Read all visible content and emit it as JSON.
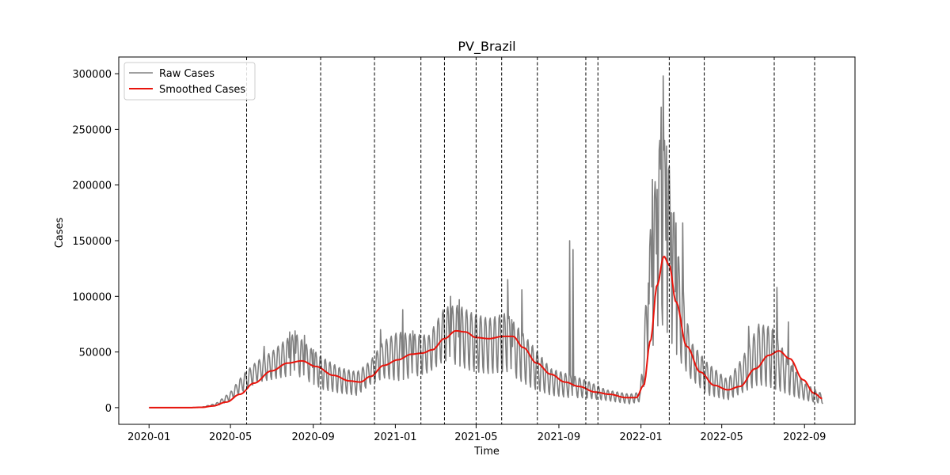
{
  "chart_data": {
    "type": "line",
    "title": "PV_Brazil",
    "xlabel": "Time",
    "ylabel": "Cases",
    "xlim": [
      "2019-11-17",
      "2022-11-15"
    ],
    "ylim": [
      -15000,
      315000
    ],
    "x_ticks": [
      "2020-01",
      "2020-05",
      "2020-09",
      "2021-01",
      "2021-05",
      "2021-09",
      "2022-01",
      "2022-05",
      "2022-09"
    ],
    "y_ticks": [
      0,
      50000,
      100000,
      150000,
      200000,
      250000,
      300000
    ],
    "grid": false,
    "legend_position": "top-left",
    "colors": {
      "raw": "#808080",
      "smoothed": "#e8140c",
      "vlines": "#000000"
    },
    "series": [
      {
        "name": "Raw Cases",
        "style": "weekly-oscillating",
        "points": [
          [
            "2020-01-01",
            0,
            0
          ],
          [
            "2020-03-01",
            0,
            0
          ],
          [
            "2020-03-20",
            200,
            500
          ],
          [
            "2020-04-10",
            1500,
            4000
          ],
          [
            "2020-05-01",
            6000,
            14000
          ],
          [
            "2020-05-20",
            14000,
            30000
          ],
          [
            "2020-06-10",
            22000,
            42000
          ],
          [
            "2020-07-01",
            24000,
            50000
          ],
          [
            "2020-07-20",
            26000,
            60000
          ],
          [
            "2020-08-05",
            28000,
            67000
          ],
          [
            "2020-08-25",
            22000,
            55000
          ],
          [
            "2020-09-15",
            15000,
            45000
          ],
          [
            "2020-10-10",
            12000,
            36000
          ],
          [
            "2020-11-05",
            10000,
            32000
          ],
          [
            "2020-11-25",
            20000,
            42000
          ],
          [
            "2020-12-15",
            25000,
            60000
          ],
          [
            "2021-01-05",
            22000,
            68000
          ],
          [
            "2021-01-25",
            25000,
            66000
          ],
          [
            "2021-02-20",
            30000,
            65000
          ],
          [
            "2021-03-15",
            40000,
            90000
          ],
          [
            "2021-04-05",
            35000,
            92000
          ],
          [
            "2021-04-25",
            30000,
            85000
          ],
          [
            "2021-05-20",
            28000,
            80000
          ],
          [
            "2021-06-15",
            30000,
            85000
          ],
          [
            "2021-07-05",
            22000,
            70000
          ],
          [
            "2021-07-25",
            15000,
            55000
          ],
          [
            "2021-08-20",
            10000,
            35000
          ],
          [
            "2021-09-15",
            8000,
            30000
          ],
          [
            "2021-10-10",
            8000,
            25000
          ],
          [
            "2021-11-10",
            6000,
            16000
          ],
          [
            "2021-12-15",
            3000,
            12000
          ],
          [
            "2021-12-31",
            5000,
            14000
          ],
          [
            "2022-01-15",
            40000,
            160000
          ],
          [
            "2022-01-28",
            70000,
            240000
          ],
          [
            "2022-02-08",
            60000,
            240000
          ],
          [
            "2022-02-25",
            40000,
            140000
          ],
          [
            "2022-03-15",
            25000,
            60000
          ],
          [
            "2022-04-10",
            10000,
            40000
          ],
          [
            "2022-05-10",
            6000,
            25000
          ],
          [
            "2022-06-01",
            12000,
            45000
          ],
          [
            "2022-06-25",
            18000,
            75000
          ],
          [
            "2022-07-15",
            15000,
            72000
          ],
          [
            "2022-08-10",
            10000,
            40000
          ],
          [
            "2022-09-01",
            6000,
            22000
          ],
          [
            "2022-09-28",
            3000,
            12000
          ]
        ],
        "spikes": [
          [
            "2020-06-20",
            55000
          ],
          [
            "2020-07-28",
            68000
          ],
          [
            "2020-08-05",
            69000
          ],
          [
            "2020-08-19",
            65000
          ],
          [
            "2020-09-01",
            52000
          ],
          [
            "2020-12-10",
            70000
          ],
          [
            "2021-01-12",
            88000
          ],
          [
            "2021-01-27",
            69000
          ],
          [
            "2021-03-24",
            100000
          ],
          [
            "2021-04-06",
            97000
          ],
          [
            "2021-06-17",
            115000
          ],
          [
            "2021-06-23",
            79000
          ],
          [
            "2021-07-08",
            106000
          ],
          [
            "2021-09-17",
            150000
          ],
          [
            "2021-09-22",
            142000
          ],
          [
            "2022-01-12",
            112000
          ],
          [
            "2022-01-18",
            205000
          ],
          [
            "2022-01-25",
            196000
          ],
          [
            "2022-01-31",
            270000
          ],
          [
            "2022-02-03",
            298000
          ],
          [
            "2022-02-08",
            235000
          ],
          [
            "2022-02-15",
            175000
          ],
          [
            "2022-02-22",
            166000
          ],
          [
            "2022-03-04",
            166000
          ],
          [
            "2022-06-10",
            73000
          ],
          [
            "2022-07-22",
            108000
          ],
          [
            "2022-08-08",
            77000
          ],
          [
            "2022-08-15",
            40000
          ]
        ]
      },
      {
        "name": "Smoothed Cases",
        "points": [
          [
            "2020-01-01",
            0
          ],
          [
            "2020-03-01",
            0
          ],
          [
            "2020-03-20",
            300
          ],
          [
            "2020-04-05",
            1500
          ],
          [
            "2020-04-25",
            5000
          ],
          [
            "2020-05-15",
            12000
          ],
          [
            "2020-06-05",
            22000
          ],
          [
            "2020-07-01",
            33000
          ],
          [
            "2020-07-25",
            40000
          ],
          [
            "2020-08-15",
            42000
          ],
          [
            "2020-09-05",
            37000
          ],
          [
            "2020-10-01",
            29000
          ],
          [
            "2020-10-25",
            24000
          ],
          [
            "2020-11-10",
            23000
          ],
          [
            "2020-11-25",
            28000
          ],
          [
            "2020-12-15",
            38000
          ],
          [
            "2021-01-05",
            43000
          ],
          [
            "2021-01-25",
            48000
          ],
          [
            "2021-02-10",
            49000
          ],
          [
            "2021-02-25",
            52000
          ],
          [
            "2021-03-15",
            62000
          ],
          [
            "2021-04-01",
            69000
          ],
          [
            "2021-04-15",
            68000
          ],
          [
            "2021-05-01",
            63000
          ],
          [
            "2021-05-20",
            62000
          ],
          [
            "2021-06-10",
            64000
          ],
          [
            "2021-06-25",
            64000
          ],
          [
            "2021-07-10",
            54000
          ],
          [
            "2021-07-30",
            40000
          ],
          [
            "2021-08-20",
            30000
          ],
          [
            "2021-09-10",
            23000
          ],
          [
            "2021-10-01",
            19000
          ],
          [
            "2021-10-25",
            14000
          ],
          [
            "2021-11-15",
            12000
          ],
          [
            "2021-12-10",
            9000
          ],
          [
            "2021-12-25",
            9000
          ],
          [
            "2022-01-05",
            20000
          ],
          [
            "2022-01-15",
            60000
          ],
          [
            "2022-01-25",
            110000
          ],
          [
            "2022-02-04",
            136000
          ],
          [
            "2022-02-12",
            128000
          ],
          [
            "2022-02-22",
            95000
          ],
          [
            "2022-03-10",
            55000
          ],
          [
            "2022-03-30",
            32000
          ],
          [
            "2022-04-20",
            20000
          ],
          [
            "2022-05-10",
            16000
          ],
          [
            "2022-05-28",
            19000
          ],
          [
            "2022-06-20",
            35000
          ],
          [
            "2022-07-10",
            47000
          ],
          [
            "2022-07-25",
            51000
          ],
          [
            "2022-08-10",
            44000
          ],
          [
            "2022-08-30",
            25000
          ],
          [
            "2022-09-15",
            13000
          ],
          [
            "2022-09-28",
            8000
          ]
        ]
      }
    ],
    "vlines": [
      "2020-05-25",
      "2020-09-12",
      "2020-12-01",
      "2021-02-08",
      "2021-03-15",
      "2021-05-01",
      "2021-06-08",
      "2021-07-31",
      "2021-10-11",
      "2021-10-29",
      "2022-02-12",
      "2022-04-05",
      "2022-07-18",
      "2022-09-16"
    ]
  }
}
